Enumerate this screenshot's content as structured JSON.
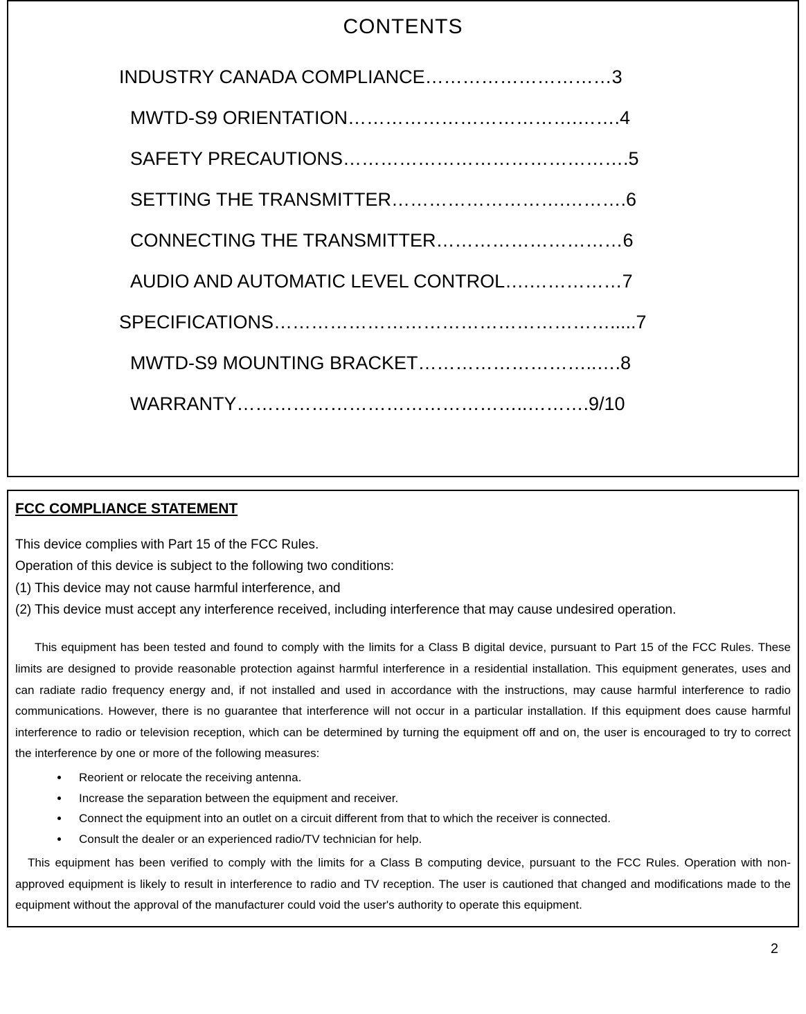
{
  "toc": {
    "title": "CONTENTS",
    "entries": [
      {
        "text": "INDUSTRY CANADA COMPLIANCE…………………………3",
        "indent": false
      },
      {
        "text": "MWTD-S9 ORIENTATION……………………………….…….4",
        "indent": true
      },
      {
        "text": "SAFETY PRECAUTIONS……………………………………….5",
        "indent": true
      },
      {
        "text": "SETTING THE TRANSMITTER……………………….……….6",
        "indent": true
      },
      {
        "text": "CONNECTING THE TRANSMITTER…………………………6",
        "indent": true
      },
      {
        "text": "AUDIO AND AUTOMATIC LEVEL CONTROL….……………7",
        "indent": true
      },
      {
        "text": "SPECIFICATIONS……………………………………………….....7",
        "indent": false
      },
      {
        "text": "MWTD-S9 MOUNTING BRACKET………………………..….8",
        "indent": true
      },
      {
        "text": "WARRANTY………………………………………..……….9/10",
        "indent": true
      }
    ]
  },
  "fcc": {
    "heading": "FCC COMPLIANCE STATEMENT",
    "intro_lines": [
      "This device complies with Part 15 of the FCC Rules.",
      "Operation of this device is subject to the following two conditions:",
      "(1) This device may not cause harmful interference, and",
      "(2) This device must accept any interference received, including interference that may cause undesired operation."
    ],
    "body": "This equipment has been tested and found to comply with the limits for a Class B digital device, pursuant to Part 15 of the FCC Rules.  These limits are designed to provide reasonable protection against harmful interference in a residential installation.  This equipment generates, uses and can radiate radio frequency energy and, if not installed and used in accordance with the instructions, may cause harmful interference to radio communications.  However, there is no guarantee that interference will not occur in a particular installation.  If this equipment does cause harmful interference to radio or television reception, which can be determined by turning the equipment off and on, the user is encouraged to try to correct the interference by one or more of the following measures:",
    "bullets": [
      "Reorient or relocate the receiving antenna.",
      "Increase the separation between the equipment and receiver.",
      "Connect the equipment into an outlet on a circuit different from that to which the receiver is connected.",
      "Consult the dealer or an experienced radio/TV technician for help."
    ],
    "body2": "This equipment has been verified to comply with the limits for a Class B computing device, pursuant to the FCC Rules.  Operation with non-approved equipment is likely to result in interference to radio and TV reception.  The user is cautioned that changed and modifications made to the equipment without the approval of the manufacturer could void the user's authority to operate this equipment."
  },
  "page_number": "2"
}
